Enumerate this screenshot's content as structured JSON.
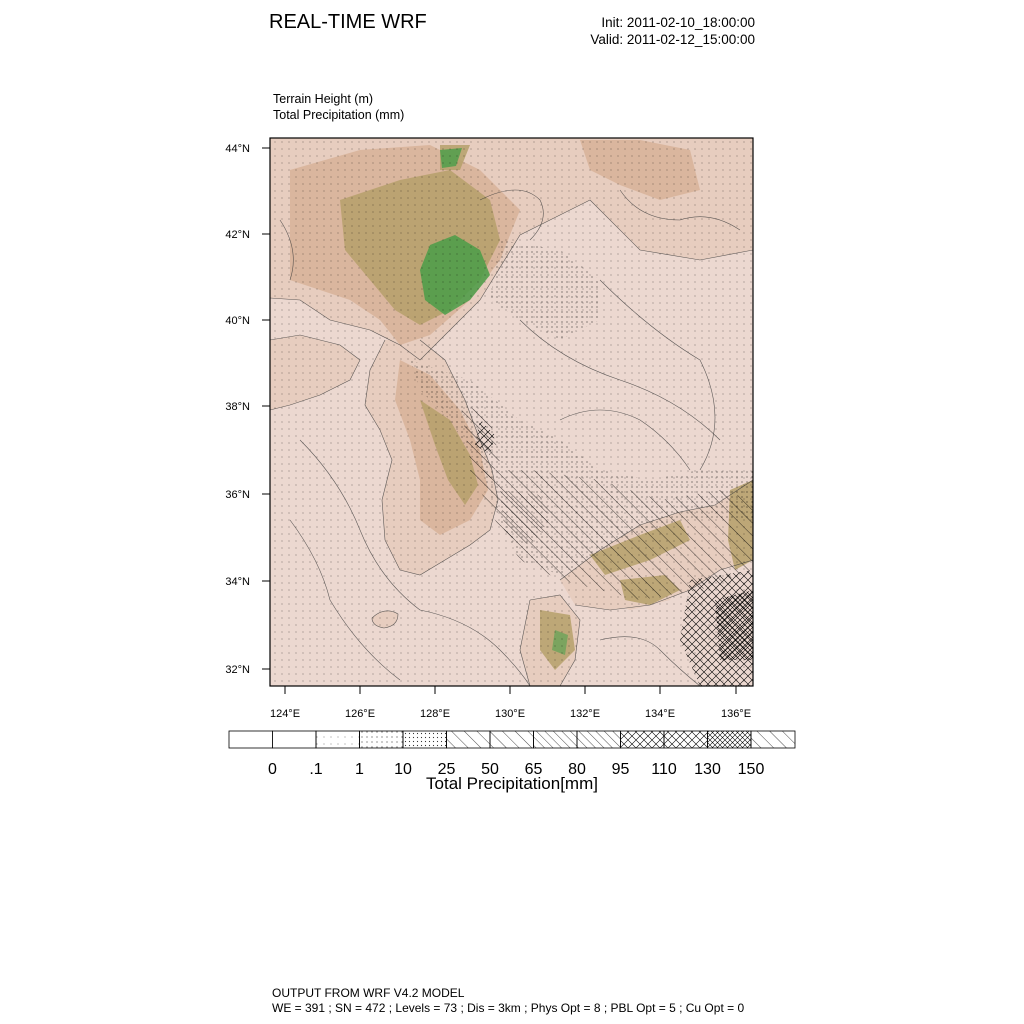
{
  "header": {
    "title": "REAL-TIME WRF",
    "init": "Init: 2011-02-10_18:00:00",
    "valid": "Valid: 2011-02-12_15:00:00"
  },
  "fields": {
    "line1": "Terrain Height   (m)",
    "line2": "Total Precipitation   (mm)"
  },
  "map": {
    "lat_ticks": [
      "32°N",
      "34°N",
      "36°N",
      "38°N",
      "40°N",
      "42°N",
      "44°N"
    ],
    "lon_ticks": [
      "124°E",
      "126°E",
      "128°E",
      "130°E",
      "132°E",
      "134°E",
      "136°E"
    ],
    "colors": {
      "sea": "#ecd8d0",
      "lowland": "#e8cfc3",
      "hills": "#c9a27a",
      "mountains": "#a9a65a",
      "peaks": "#3f9a45"
    }
  },
  "colorbar": {
    "labels": [
      "0",
      ".1",
      "1",
      "10",
      "25",
      "50",
      "65",
      "80",
      "95",
      "110",
      "130",
      "150"
    ],
    "title": "Total Precipitation[mm]"
  },
  "footer": {
    "line1": "OUTPUT FROM WRF V4.2 MODEL",
    "line2": "WE = 391 ; SN = 472 ; Levels = 73 ; Dis = 3km ; Phys Opt = 8 ; PBL Opt = 5 ; Cu Opt = 0"
  }
}
